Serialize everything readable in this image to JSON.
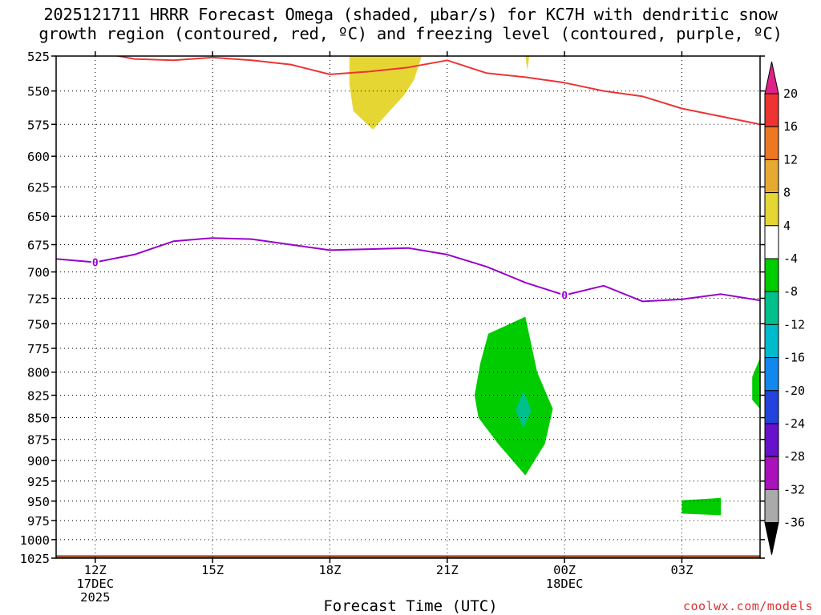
{
  "title_line1": "2025121711 HRRR Forecast Omega (shaded, μbar/s) for KC7H with dendritic snow",
  "title_line2": "growth region (contoured, red, ºC) and freezing level (contoured, purple, ºC)",
  "xlabel": "Forecast Time (UTC)",
  "credit": "coolwx.com/models",
  "chart_data": {
    "type": "time-height cross section",
    "x_range_hours": [
      11,
      29
    ],
    "y_range_mb": [
      1025,
      525
    ],
    "y_scale": "log-pressure",
    "grid": true,
    "y_ticks": [
      525,
      550,
      575,
      600,
      625,
      650,
      675,
      700,
      725,
      750,
      775,
      800,
      825,
      850,
      875,
      900,
      925,
      950,
      975,
      1000,
      1025
    ],
    "x_ticks": [
      {
        "hour": 12,
        "lines": [
          "12Z",
          "17DEC",
          "2025"
        ]
      },
      {
        "hour": 15,
        "lines": [
          "15Z"
        ]
      },
      {
        "hour": 18,
        "lines": [
          "18Z"
        ]
      },
      {
        "hour": 21,
        "lines": [
          "21Z"
        ]
      },
      {
        "hour": 24,
        "lines": [
          "00Z",
          "18DEC"
        ]
      },
      {
        "hour": 27,
        "lines": [
          "03Z"
        ]
      }
    ],
    "dgz_line": {
      "color": "#ee3333",
      "points": [
        [
          12.2,
          523
        ],
        [
          13,
          527
        ],
        [
          14,
          528
        ],
        [
          15,
          526
        ],
        [
          16,
          528
        ],
        [
          17,
          531
        ],
        [
          18,
          538
        ],
        [
          19,
          536
        ],
        [
          20,
          533
        ],
        [
          21,
          528
        ],
        [
          22,
          537
        ],
        [
          23,
          540
        ],
        [
          24,
          544
        ],
        [
          25,
          550
        ],
        [
          26,
          554
        ],
        [
          27,
          563
        ],
        [
          28,
          569
        ],
        [
          29,
          575
        ]
      ]
    },
    "freezing_line": {
      "color": "#9900cc",
      "label": "0",
      "label_hours": [
        12,
        24
      ],
      "points": [
        [
          11,
          688
        ],
        [
          12,
          691
        ],
        [
          13,
          684
        ],
        [
          14,
          672
        ],
        [
          15,
          669
        ],
        [
          16,
          670
        ],
        [
          17,
          675
        ],
        [
          18,
          680
        ],
        [
          19,
          679
        ],
        [
          20,
          678
        ],
        [
          21,
          684
        ],
        [
          22,
          695
        ],
        [
          23,
          710
        ],
        [
          24,
          722
        ],
        [
          25,
          713
        ],
        [
          26,
          728
        ],
        [
          27,
          726
        ],
        [
          28,
          721
        ],
        [
          29,
          727
        ]
      ]
    },
    "omega_regions": [
      {
        "color": "#e6d633",
        "range": "4 to 8",
        "points": [
          [
            18.5,
            525
          ],
          [
            20.35,
            525
          ],
          [
            20.15,
            542
          ],
          [
            19.9,
            553
          ],
          [
            19.1,
            579
          ],
          [
            18.6,
            565
          ],
          [
            18.5,
            545
          ]
        ]
      },
      {
        "color": "#e6d633",
        "range": "4 to 8",
        "points": [
          [
            23,
            525
          ],
          [
            23.1,
            525
          ],
          [
            23.05,
            535
          ]
        ]
      },
      {
        "color": "#00cc00",
        "range": "-8 to -4",
        "points": [
          [
            23,
            743
          ],
          [
            23.3,
            800
          ],
          [
            23.7,
            840
          ],
          [
            23.5,
            880
          ],
          [
            23,
            918
          ],
          [
            22.3,
            880
          ],
          [
            21.8,
            850
          ],
          [
            21.7,
            825
          ],
          [
            21.85,
            790
          ],
          [
            22.05,
            760
          ]
        ]
      },
      {
        "color": "#00c08c",
        "range": "-12 to -8",
        "points": [
          [
            22.95,
            820
          ],
          [
            23.15,
            842
          ],
          [
            22.95,
            862
          ],
          [
            22.75,
            842
          ]
        ]
      },
      {
        "color": "#00cc00",
        "range": "-8 to -4",
        "points": [
          [
            29,
            785
          ],
          [
            29,
            840
          ],
          [
            28.8,
            830
          ],
          [
            28.8,
            805
          ]
        ]
      },
      {
        "color": "#00cc00",
        "range": "-8 to -4",
        "points": [
          [
            27,
            949
          ],
          [
            28,
            946
          ],
          [
            28,
            968
          ],
          [
            27,
            966
          ]
        ]
      }
    ],
    "surface_fill": {
      "color": "#a0522d",
      "bottom_mb": 1025,
      "top_mb": 1021
    }
  },
  "colorbar": {
    "labels": [
      "20",
      "16",
      "12",
      "8",
      "4",
      "-4",
      "-8",
      "-12",
      "-16",
      "-20",
      "-24",
      "-28",
      "-32",
      "-36"
    ],
    "colors": [
      "#dd2288",
      "#ee3333",
      "#ee7722",
      "#e6aa33",
      "#e6d633",
      "#ffffff",
      "#00cc00",
      "#00c08c",
      "#00bbcc",
      "#1188ee",
      "#2244dd",
      "#6611cc",
      "#aa11bb",
      "#aaaaaa",
      "#000000"
    ]
  }
}
